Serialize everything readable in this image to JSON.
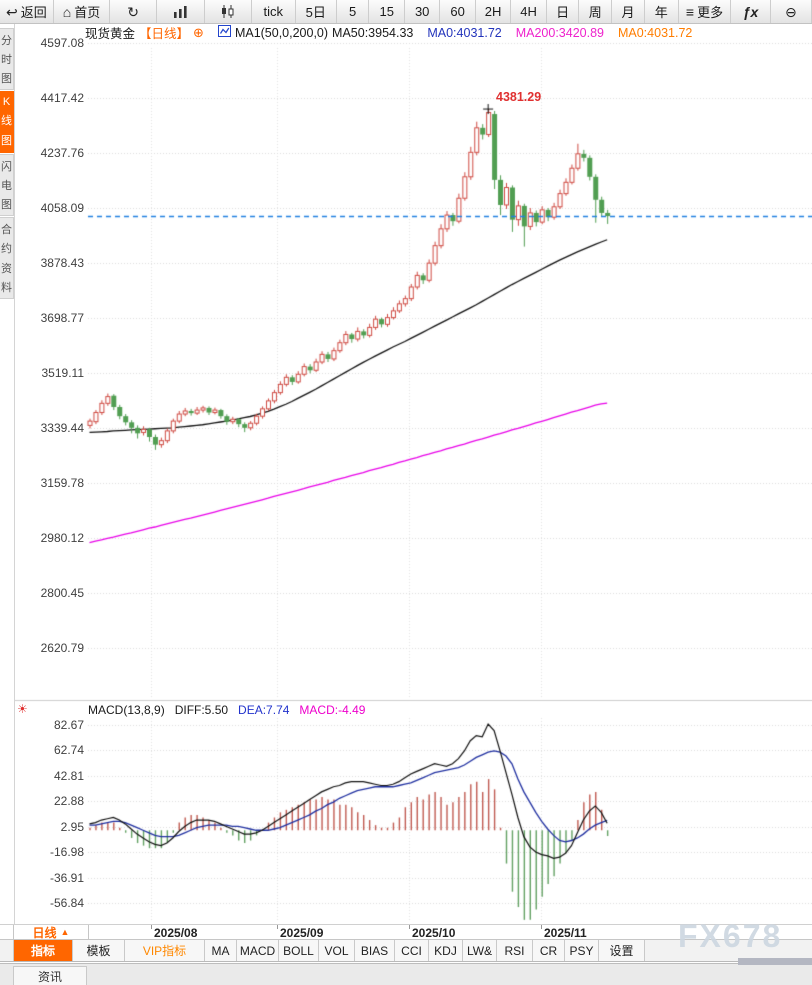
{
  "toolbar": {
    "items": [
      {
        "name": "back-button",
        "label": "返回",
        "icon": "back-arrow-icon",
        "glyph": "↩"
      },
      {
        "name": "home-button",
        "label": "首页",
        "icon": "home-icon",
        "glyph": "⌂"
      },
      {
        "name": "refresh-button",
        "label": "",
        "icon": "refresh-icon",
        "glyph": "↻"
      },
      {
        "name": "line-chart-button",
        "label": "",
        "icon": "bar-chart-icon",
        "glyph": "svg-bars"
      },
      {
        "name": "kline-chart-button",
        "label": "",
        "icon": "candlestick-icon",
        "glyph": "svg-candles"
      },
      {
        "name": "period-tick",
        "label": "tick"
      },
      {
        "name": "period-5day",
        "label": "5日"
      },
      {
        "name": "period-5min",
        "label": "5"
      },
      {
        "name": "period-15min",
        "label": "15"
      },
      {
        "name": "period-30min",
        "label": "30"
      },
      {
        "name": "period-60min",
        "label": "60"
      },
      {
        "name": "period-2h",
        "label": "2H"
      },
      {
        "name": "period-4h",
        "label": "4H"
      },
      {
        "name": "period-day",
        "label": "日"
      },
      {
        "name": "period-week",
        "label": "周"
      },
      {
        "name": "period-month",
        "label": "月"
      },
      {
        "name": "period-year",
        "label": "年"
      },
      {
        "name": "more-button",
        "label": "更多",
        "icon": "menu-icon",
        "glyph": "≡"
      },
      {
        "name": "fx-indicator-button",
        "label": "",
        "icon": "fx-icon",
        "glyph": "ƒx"
      },
      {
        "name": "zoom-out-button",
        "label": "",
        "icon": "zoom-out-icon",
        "glyph": "⊖"
      }
    ]
  },
  "sidebar": {
    "tabs": [
      {
        "label": "分时图",
        "active": false
      },
      {
        "label": "K线图",
        "active": true
      },
      {
        "label": "闪电图",
        "active": false
      },
      {
        "label": "合约资料",
        "active": false
      }
    ]
  },
  "chart_header": {
    "symbol": "现货黄金",
    "period_tag": "【日线】",
    "plus": "⊕",
    "ma_params": "MA1(50,0,200,0)",
    "ma50_label": "MA50:3954.33",
    "ma0_blue_label": "MA0:4031.72",
    "ma200_label": "MA200:3420.89",
    "ma0_orange_label": "MA0:4031.72"
  },
  "macd_header": {
    "params": "MACD(13,8,9)",
    "diff_label": "DIFF:5.50",
    "dea_label": "DEA:7.74",
    "macd_label": "MACD:-4.49"
  },
  "footer": {
    "period_selector": "日线",
    "period_selector_arrow": "▲",
    "tabs": [
      {
        "label": "指标",
        "style": "active"
      },
      {
        "label": "模板"
      },
      {
        "label": "VIP指标",
        "style": "vip"
      },
      {
        "label": "MA"
      },
      {
        "label": "MACD"
      },
      {
        "label": "BOLL"
      },
      {
        "label": "VOL"
      },
      {
        "label": "BIAS"
      },
      {
        "label": "CCI"
      },
      {
        "label": "KDJ"
      },
      {
        "label": "LW&"
      },
      {
        "label": "RSI"
      },
      {
        "label": "CR"
      },
      {
        "label": "PSY"
      },
      {
        "label": "设置"
      }
    ],
    "news_tab": "资讯"
  },
  "watermark": "FX678",
  "colors": {
    "accent_orange": "#ff6600",
    "candle_up": "#cf4a42",
    "candle_down": "#519e52",
    "ma50_line": "#111111",
    "ma200_line": "#e800e8",
    "last_price_line": "#1f7fe0",
    "macd_diff": "#111111",
    "macd_dea": "#1f2fa0",
    "hist_positive": "#c05a50",
    "hist_negative": "#62a062",
    "high_label": "#e03030"
  },
  "chart_data": {
    "type": "candlestick+macd",
    "symbol": "现货黄金",
    "timeframe": "日线",
    "x_axis_labels": [
      "2025/08",
      "2025/09",
      "2025/10",
      "2025/11"
    ],
    "main": {
      "y_ticks": [
        4597.08,
        4417.42,
        4237.76,
        4058.09,
        3878.43,
        3698.77,
        3519.11,
        3339.44,
        3159.78,
        2980.12,
        2800.45,
        2620.79
      ],
      "last_price": 4031.72,
      "high_annotation": {
        "value": 4381.29,
        "index": 67
      },
      "candles": [
        [
          3348,
          3370,
          3338,
          3362
        ],
        [
          3360,
          3398,
          3352,
          3390
        ],
        [
          3390,
          3430,
          3382,
          3420
        ],
        [
          3420,
          3452,
          3412,
          3442
        ],
        [
          3445,
          3450,
          3398,
          3408
        ],
        [
          3408,
          3415,
          3368,
          3378
        ],
        [
          3378,
          3385,
          3348,
          3358
        ],
        [
          3358,
          3365,
          3322,
          3340
        ],
        [
          3340,
          3348,
          3305,
          3322
        ],
        [
          3325,
          3345,
          3315,
          3335
        ],
        [
          3335,
          3340,
          3295,
          3310
        ],
        [
          3310,
          3318,
          3268,
          3285
        ],
        [
          3285,
          3308,
          3275,
          3298
        ],
        [
          3298,
          3338,
          3290,
          3330
        ],
        [
          3330,
          3370,
          3322,
          3362
        ],
        [
          3362,
          3395,
          3355,
          3385
        ],
        [
          3385,
          3405,
          3378,
          3395
        ],
        [
          3395,
          3402,
          3380,
          3388
        ],
        [
          3388,
          3408,
          3382,
          3398
        ],
        [
          3398,
          3412,
          3390,
          3405
        ],
        [
          3405,
          3410,
          3382,
          3390
        ],
        [
          3390,
          3406,
          3384,
          3398
        ],
        [
          3398,
          3402,
          3370,
          3378
        ],
        [
          3378,
          3384,
          3350,
          3360
        ],
        [
          3360,
          3376,
          3352,
          3368
        ],
        [
          3368,
          3372,
          3342,
          3352
        ],
        [
          3352,
          3358,
          3326,
          3340
        ],
        [
          3340,
          3362,
          3332,
          3355
        ],
        [
          3355,
          3386,
          3348,
          3378
        ],
        [
          3378,
          3410,
          3370,
          3402
        ],
        [
          3402,
          3436,
          3396,
          3428
        ],
        [
          3428,
          3464,
          3420,
          3455
        ],
        [
          3455,
          3492,
          3448,
          3482
        ],
        [
          3482,
          3515,
          3475,
          3505
        ],
        [
          3505,
          3512,
          3480,
          3490
        ],
        [
          3490,
          3525,
          3484,
          3515
        ],
        [
          3515,
          3550,
          3508,
          3540
        ],
        [
          3540,
          3548,
          3518,
          3528
        ],
        [
          3528,
          3566,
          3522,
          3555
        ],
        [
          3555,
          3590,
          3548,
          3580
        ],
        [
          3580,
          3588,
          3555,
          3565
        ],
        [
          3565,
          3602,
          3558,
          3592
        ],
        [
          3592,
          3628,
          3585,
          3618
        ],
        [
          3618,
          3656,
          3610,
          3645
        ],
        [
          3645,
          3650,
          3618,
          3630
        ],
        [
          3630,
          3668,
          3622,
          3655
        ],
        [
          3655,
          3662,
          3632,
          3642
        ],
        [
          3642,
          3680,
          3635,
          3668
        ],
        [
          3668,
          3706,
          3660,
          3695
        ],
        [
          3695,
          3700,
          3668,
          3678
        ],
        [
          3678,
          3712,
          3670,
          3700
        ],
        [
          3700,
          3734,
          3694,
          3722
        ],
        [
          3722,
          3756,
          3715,
          3745
        ],
        [
          3745,
          3772,
          3736,
          3762
        ],
        [
          3762,
          3810,
          3754,
          3800
        ],
        [
          3800,
          3850,
          3792,
          3838
        ],
        [
          3838,
          3845,
          3810,
          3822
        ],
        [
          3822,
          3890,
          3815,
          3878
        ],
        [
          3878,
          3948,
          3870,
          3935
        ],
        [
          3935,
          4005,
          3926,
          3990
        ],
        [
          3990,
          4048,
          3980,
          4035
        ],
        [
          4035,
          4042,
          4000,
          4015
        ],
        [
          4015,
          4105,
          4008,
          4090
        ],
        [
          4090,
          4175,
          4082,
          4160
        ],
        [
          4160,
          4258,
          4150,
          4240
        ],
        [
          4240,
          4340,
          4230,
          4320
        ],
        [
          4320,
          4332,
          4282,
          4298
        ],
        [
          4298,
          4381.29,
          4290,
          4370
        ],
        [
          4365,
          4375,
          4120,
          4150
        ],
        [
          4150,
          4165,
          4035,
          4068
        ],
        [
          4068,
          4140,
          4055,
          4125
        ],
        [
          4125,
          4132,
          3980,
          4020
        ],
        [
          4020,
          4082,
          4000,
          4065
        ],
        [
          4065,
          4072,
          3932,
          3998
        ],
        [
          3998,
          4058,
          3986,
          4042
        ],
        [
          4042,
          4050,
          3998,
          4012
        ],
        [
          4012,
          4064,
          4005,
          4052
        ],
        [
          4052,
          4058,
          4015,
          4028
        ],
        [
          4028,
          4075,
          4020,
          4062
        ],
        [
          4062,
          4118,
          4055,
          4105
        ],
        [
          4105,
          4155,
          4098,
          4142
        ],
        [
          4142,
          4200,
          4135,
          4188
        ],
        [
          4188,
          4268,
          4180,
          4235
        ],
        [
          4235,
          4248,
          4210,
          4222
        ],
        [
          4222,
          4230,
          4148,
          4160
        ],
        [
          4160,
          4168,
          4010,
          4085
        ],
        [
          4085,
          4095,
          4030,
          4042
        ],
        [
          4042,
          4052,
          4006,
          4031.72
        ]
      ],
      "ma50": [
        3325,
        3326,
        3327,
        3328,
        3330,
        3331,
        3332,
        3333,
        3334,
        3335,
        3336,
        3337,
        3338,
        3339,
        3340,
        3342,
        3344,
        3346,
        3348,
        3350,
        3353,
        3356,
        3359,
        3362,
        3365,
        3369,
        3373,
        3377,
        3382,
        3388,
        3394,
        3401,
        3409,
        3417,
        3426,
        3436,
        3446,
        3456,
        3466,
        3477,
        3488,
        3499,
        3510,
        3521,
        3532,
        3543,
        3554,
        3564,
        3574,
        3584,
        3594,
        3604,
        3613,
        3622,
        3632,
        3642,
        3652,
        3662,
        3672,
        3682,
        3692,
        3702,
        3712,
        3722,
        3732,
        3742,
        3753,
        3764,
        3775,
        3786,
        3797,
        3808,
        3818,
        3828,
        3838,
        3848,
        3858,
        3868,
        3878,
        3888,
        3897,
        3906,
        3915,
        3923,
        3931,
        3939,
        3947,
        3954.33
      ],
      "ma200": [
        2965,
        2970,
        2974,
        2979,
        2983,
        2988,
        2993,
        2997,
        3002,
        3007,
        3012,
        3016,
        3021,
        3026,
        3031,
        3036,
        3041,
        3045,
        3050,
        3055,
        3060,
        3065,
        3070,
        3075,
        3080,
        3085,
        3090,
        3095,
        3100,
        3105,
        3110,
        3116,
        3121,
        3126,
        3131,
        3136,
        3141,
        3147,
        3152,
        3157,
        3162,
        3168,
        3173,
        3178,
        3184,
        3189,
        3194,
        3200,
        3205,
        3210,
        3216,
        3221,
        3227,
        3232,
        3238,
        3243,
        3249,
        3254,
        3260,
        3265,
        3271,
        3276,
        3282,
        3287,
        3293,
        3299,
        3304,
        3310,
        3316,
        3321,
        3327,
        3333,
        3338,
        3344,
        3350,
        3356,
        3361,
        3367,
        3373,
        3379,
        3385,
        3391,
        3396,
        3402,
        3408,
        3414,
        3418,
        3420.89
      ]
    },
    "macd": {
      "params": "(13,8,9)",
      "diff_last": 5.5,
      "dea_last": 7.74,
      "hist_last": -4.49,
      "y_ticks": [
        82.67,
        62.74,
        42.81,
        22.88,
        2.95,
        -16.98,
        -36.91,
        -56.84
      ],
      "diff": [
        5,
        6,
        8,
        9,
        10,
        8,
        5,
        1,
        -3,
        -6,
        -9,
        -11,
        -12,
        -10,
        -6,
        -1,
        3,
        6,
        8,
        8,
        8,
        7,
        5,
        3,
        1,
        -1,
        -3,
        -3,
        -2,
        0,
        3,
        6,
        9,
        12,
        15,
        18,
        21,
        24,
        27,
        30,
        32,
        34,
        35,
        37,
        38,
        38,
        38,
        37,
        36,
        35,
        35,
        36,
        38,
        41,
        44,
        46,
        48,
        50,
        52,
        51,
        50,
        52,
        56,
        62,
        70,
        74,
        73,
        83,
        78,
        62,
        45,
        28,
        10,
        -5,
        -13,
        -17,
        -19,
        -20,
        -22,
        -21,
        -18,
        -12,
        -2,
        8,
        15,
        19,
        14,
        5.5
      ],
      "dea": [
        4,
        4,
        5,
        6,
        7,
        7,
        6,
        4,
        2,
        0,
        -2,
        -4,
        -5,
        -5,
        -5,
        -4,
        -2,
        0,
        2,
        3,
        4,
        4,
        4,
        4,
        3,
        3,
        2,
        1,
        0,
        0,
        0,
        1,
        2,
        4,
        6,
        8,
        10,
        12,
        15,
        17,
        20,
        22,
        25,
        27,
        29,
        31,
        32,
        33,
        34,
        34,
        34,
        34,
        35,
        36,
        37,
        39,
        41,
        43,
        45,
        46,
        47,
        48,
        49,
        51,
        54,
        57,
        59,
        61,
        62,
        61,
        58,
        52,
        40,
        30,
        22,
        14,
        7,
        1,
        -4,
        -8,
        -9,
        -8,
        -6,
        -3,
        1,
        4,
        6,
        7.74
      ],
      "hist": [
        2,
        4,
        6,
        6,
        6,
        2,
        -2,
        -6,
        -10,
        -12,
        -14,
        -14,
        -14,
        -10,
        -2,
        6,
        10,
        12,
        12,
        10,
        8,
        6,
        2,
        -2,
        -4,
        -8,
        -10,
        -8,
        -4,
        0,
        6,
        10,
        14,
        16,
        18,
        20,
        22,
        24,
        24,
        26,
        24,
        24,
        20,
        20,
        18,
        14,
        12,
        8,
        4,
        2,
        2,
        6,
        10,
        18,
        22,
        26,
        24,
        28,
        30,
        26,
        20,
        22,
        26,
        30,
        36,
        38,
        30,
        40,
        32,
        2,
        -26,
        -48,
        -60,
        -70,
        -70,
        -62,
        -52,
        -42,
        -36,
        -26,
        -18,
        -8,
        8,
        22,
        28,
        30,
        16,
        -4.49
      ]
    }
  }
}
